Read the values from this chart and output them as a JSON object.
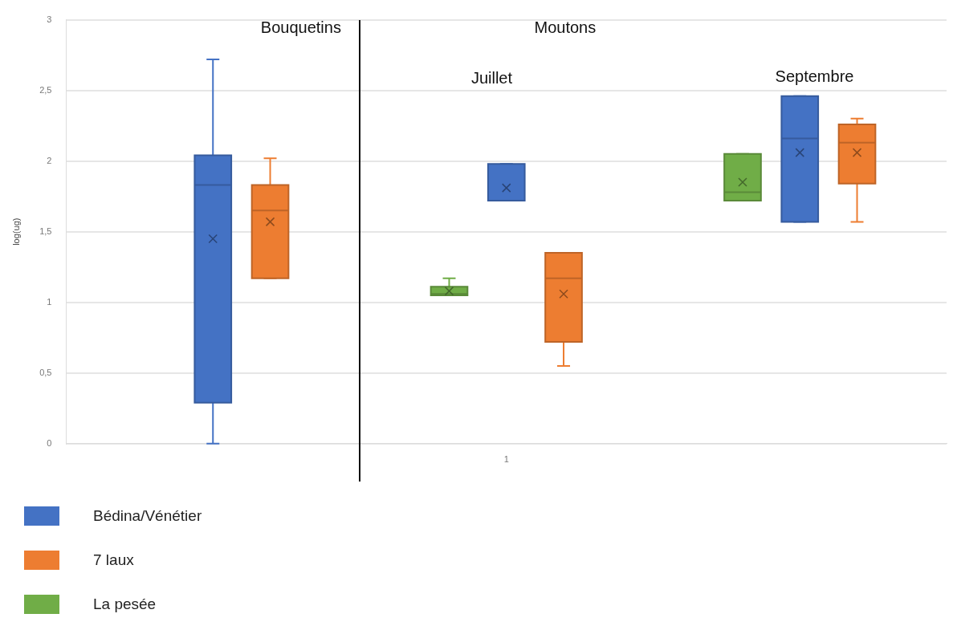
{
  "chart_data": {
    "type": "box",
    "ylabel": "log(ug)",
    "categories": [
      null,
      "1",
      null
    ],
    "ylim": [
      0,
      3
    ],
    "yticks": [
      0,
      {
        "value": 0.5,
        "label": "0,5"
      },
      1,
      {
        "value": 1.5,
        "label": "1,5"
      },
      2,
      {
        "value": 2.5,
        "label": "2,5"
      },
      3
    ],
    "grid": "y",
    "legend": "bottom left",
    "annotations": [
      "Bouquetins",
      "Moutons",
      "Juillet",
      "Septembre"
    ],
    "series": [
      {
        "name": "Bédina/Vénétier",
        "color": "#4472c4",
        "boxes": [
          {
            "low": 0,
            "q1": 0.29,
            "median": 1.83,
            "q3": 2.04,
            "high": 2.72,
            "mean": 1.45
          },
          {
            "low": 1.72,
            "q1": 1.72,
            "median": 1.72,
            "q3": 1.98,
            "high": 1.98,
            "mean": 1.81
          },
          {
            "low": 1.57,
            "q1": 1.57,
            "median": 2.16,
            "q3": 2.46,
            "high": 2.46,
            "mean": 2.06
          }
        ]
      },
      {
        "name": "7 laux",
        "color": "#ed7d31",
        "boxes": [
          {
            "low": 1.17,
            "q1": 1.17,
            "median": 1.65,
            "q3": 1.83,
            "high": 2.02,
            "mean": 1.57
          },
          {
            "low": 0.55,
            "q1": 0.72,
            "median": 1.17,
            "q3": 1.35,
            "high": 1.35,
            "mean": 1.06
          },
          {
            "low": 1.57,
            "q1": 1.84,
            "median": 2.13,
            "q3": 2.26,
            "high": 2.3,
            "mean": 2.06
          }
        ]
      },
      {
        "name": "La pesée",
        "color": "#70ad47",
        "boxes": [
          null,
          {
            "low": 1.05,
            "q1": 1.05,
            "median": 1.06,
            "q3": 1.11,
            "high": 1.17,
            "mean": 1.08
          },
          {
            "low": 1.72,
            "q1": 1.72,
            "median": 1.78,
            "q3": 2.05,
            "high": 2.05,
            "mean": 1.85
          }
        ]
      }
    ]
  }
}
